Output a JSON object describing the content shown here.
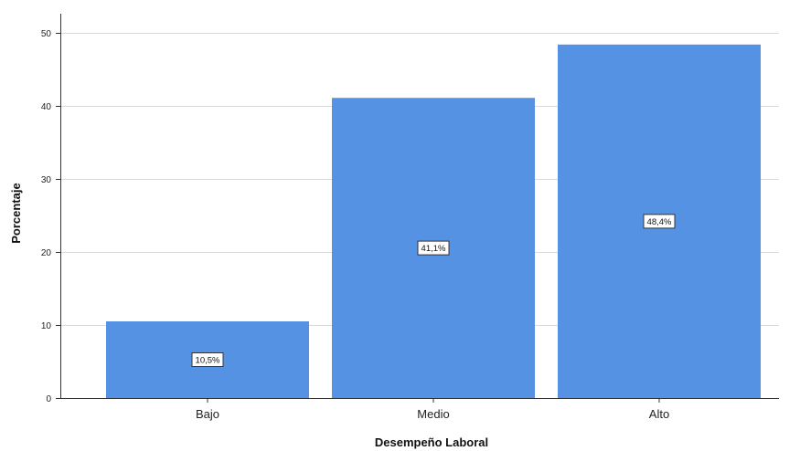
{
  "chart_data": {
    "type": "bar",
    "categories": [
      "Bajo",
      "Medio",
      "Alto"
    ],
    "values": [
      10.5,
      41.1,
      48.4
    ],
    "data_labels": [
      "10,5%",
      "41,1%",
      "48,4%"
    ],
    "xlabel": "Desempeño Laboral",
    "ylabel": "Porcentaje",
    "ylim": [
      0,
      50
    ],
    "yticks": [
      0,
      10,
      20,
      30,
      40,
      50
    ],
    "ytick_labels": [
      "0",
      "10",
      "20",
      "30",
      "40",
      "50"
    ],
    "grid": true,
    "legend": "none",
    "bar_color": "#5592e4",
    "grid_color": "#d9d9d9"
  }
}
